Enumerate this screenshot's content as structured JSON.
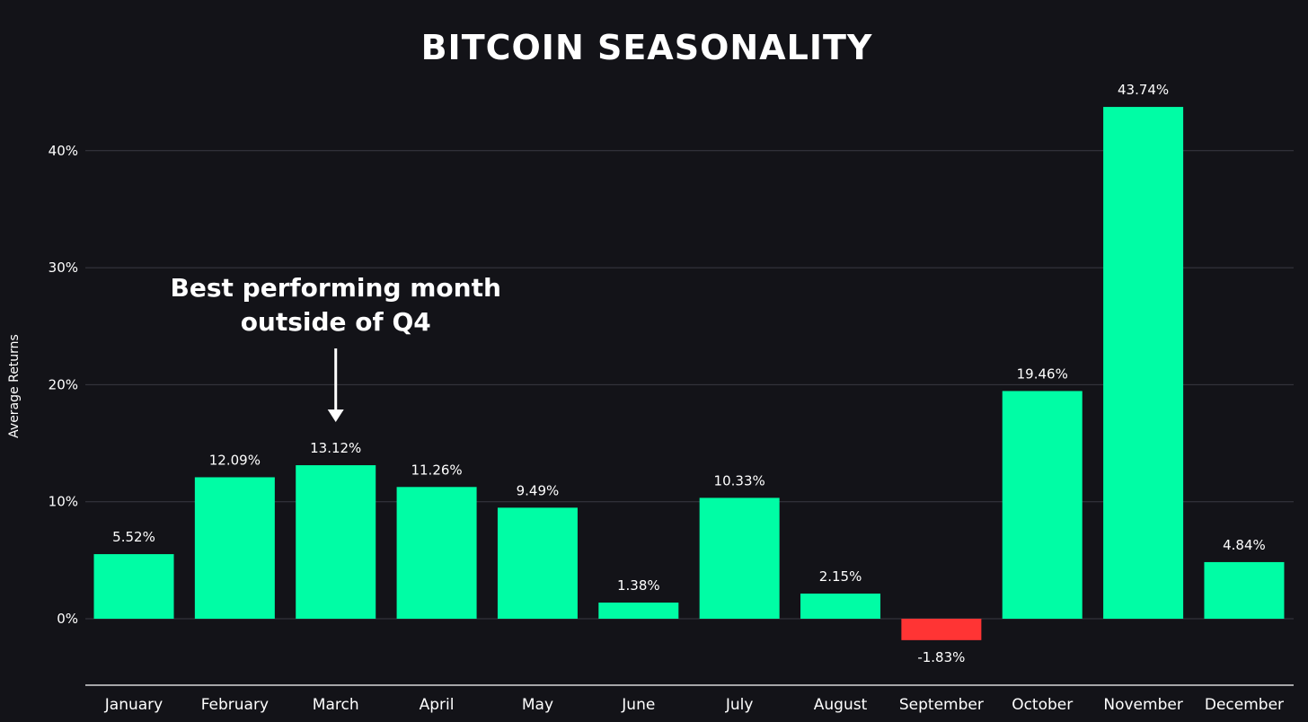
{
  "chart_data": {
    "type": "bar",
    "title": "BITCOIN SEASONALITY",
    "xlabel": "",
    "ylabel": "Average Returns",
    "ylim": [
      -5,
      46
    ],
    "yticks": [
      0,
      10,
      20,
      30,
      40
    ],
    "ytick_labels": [
      "0%",
      "10%",
      "20%",
      "30%",
      "40%"
    ],
    "grid": true,
    "categories": [
      "January",
      "February",
      "March",
      "April",
      "May",
      "June",
      "July",
      "August",
      "September",
      "October",
      "November",
      "December"
    ],
    "values": [
      5.52,
      12.09,
      13.12,
      11.26,
      9.49,
      1.38,
      10.33,
      2.15,
      -1.83,
      19.46,
      43.74,
      4.84
    ],
    "value_labels": [
      "5.52%",
      "12.09%",
      "13.12%",
      "11.26%",
      "9.49%",
      "1.38%",
      "10.33%",
      "2.15%",
      "-1.83%",
      "19.46%",
      "43.74%",
      "4.84%"
    ],
    "colors": {
      "positive": "#00fda5",
      "negative": "#ff3434",
      "background": "#131318",
      "text": "#ffffff"
    },
    "annotation": {
      "lines": [
        "Best performing month",
        "outside of Q4"
      ],
      "target_category": "March"
    }
  }
}
